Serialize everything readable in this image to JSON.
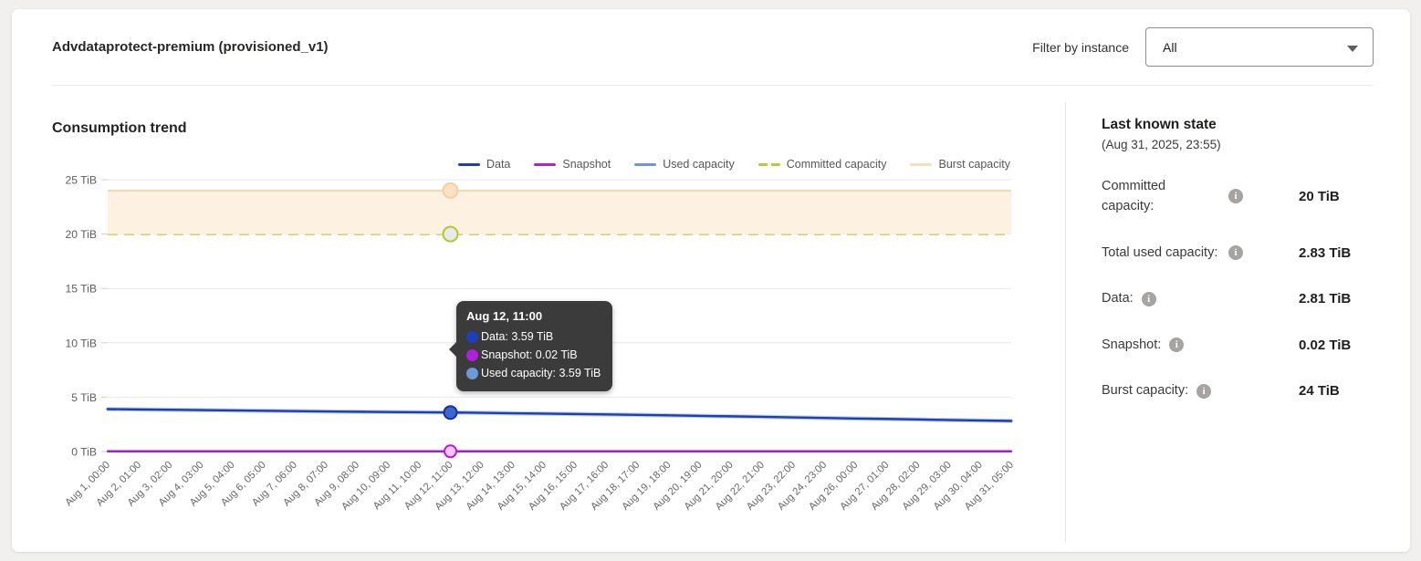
{
  "header": {
    "title": "Advdataprotect-premium (provisioned_v1)",
    "filter_label": "Filter by instance",
    "filter_value": "All"
  },
  "section": {
    "title": "Consumption trend"
  },
  "legend": {
    "items": [
      {
        "label": "Data",
        "color": "#1f3db4",
        "dashed": false
      },
      {
        "label": "Snapshot",
        "color": "#b01fe0",
        "dashed": false
      },
      {
        "label": "Used capacity",
        "color": "#7097d4",
        "dashed": false
      },
      {
        "label": "Committed capacity",
        "color": "#b8cc35",
        "dashed": true
      },
      {
        "label": "Burst capacity",
        "color": "#f6dfba",
        "dashed": false
      }
    ]
  },
  "chart_data": {
    "type": "line",
    "title": "Consumption trend",
    "xlabel": "",
    "ylabel": "TiB",
    "ylim": [
      0,
      25
    ],
    "yticks": [
      0,
      5,
      10,
      15,
      20,
      25
    ],
    "ytick_suffix": " TiB",
    "grid": true,
    "legend_position": "top-right",
    "x": [
      "Aug 1, 00:00",
      "Aug 2, 01:00",
      "Aug 3, 02:00",
      "Aug 4, 03:00",
      "Aug 5, 04:00",
      "Aug 6, 05:00",
      "Aug 7, 06:00",
      "Aug 8, 07:00",
      "Aug 9, 08:00",
      "Aug 10, 09:00",
      "Aug 11, 10:00",
      "Aug 12, 11:00",
      "Aug 13, 12:00",
      "Aug 14, 13:00",
      "Aug 15, 14:00",
      "Aug 16, 15:00",
      "Aug 17, 16:00",
      "Aug 18, 17:00",
      "Aug 19, 18:00",
      "Aug 20, 19:00",
      "Aug 21, 20:00",
      "Aug 22, 21:00",
      "Aug 23, 22:00",
      "Aug 24, 23:00",
      "Aug 26, 00:00",
      "Aug 27, 01:00",
      "Aug 28, 02:00",
      "Aug 29, 03:00",
      "Aug 30, 04:00",
      "Aug 31, 05:00"
    ],
    "series": [
      {
        "name": "Used capacity",
        "color": "#7097d4",
        "values": [
          3.9,
          3.87,
          3.84,
          3.81,
          3.78,
          3.75,
          3.72,
          3.69,
          3.66,
          3.63,
          3.61,
          3.59,
          3.56,
          3.52,
          3.49,
          3.45,
          3.41,
          3.37,
          3.33,
          3.28,
          3.24,
          3.19,
          3.14,
          3.09,
          3.04,
          3.0,
          2.95,
          2.9,
          2.86,
          2.83
        ]
      },
      {
        "name": "Data",
        "color": "#1f3db4",
        "values": [
          3.9,
          3.87,
          3.84,
          3.81,
          3.78,
          3.75,
          3.72,
          3.69,
          3.66,
          3.63,
          3.61,
          3.59,
          3.56,
          3.52,
          3.49,
          3.45,
          3.41,
          3.37,
          3.33,
          3.28,
          3.24,
          3.19,
          3.14,
          3.09,
          3.04,
          3.0,
          2.95,
          2.9,
          2.86,
          2.81
        ]
      },
      {
        "name": "Snapshot",
        "color": "#a816df",
        "values": [
          0.02,
          0.02,
          0.02,
          0.02,
          0.02,
          0.02,
          0.02,
          0.02,
          0.02,
          0.02,
          0.02,
          0.02,
          0.02,
          0.02,
          0.02,
          0.02,
          0.02,
          0.02,
          0.02,
          0.02,
          0.02,
          0.02,
          0.02,
          0.02,
          0.02,
          0.02,
          0.02,
          0.02,
          0.02,
          0.02
        ]
      }
    ],
    "constant_series": [
      {
        "name": "Committed capacity",
        "color": "#b8cc35",
        "value": 20,
        "dashed": true
      },
      {
        "name": "Burst capacity",
        "color": "#f3d9af",
        "value": 24,
        "fill": "#fdf2e2",
        "fill_to": 20
      }
    ],
    "highlight": {
      "x_index": 11,
      "markers": [
        {
          "name": "Burst capacity",
          "value": 24,
          "fill": "#f8e2c1",
          "stroke": "#efd2a4",
          "r": 8
        },
        {
          "name": "Committed capacity",
          "value": 20,
          "fill": "#e9e9e9",
          "stroke": "#b2c832",
          "r": 8
        },
        {
          "name": "Data",
          "value": 3.59,
          "fill": "#3a66d0",
          "stroke": "#172f9d",
          "r": 7
        },
        {
          "name": "Snapshot",
          "value": 0.02,
          "fill": "#f6c7f2",
          "stroke": "#c013e0",
          "r": 6.5
        }
      ]
    }
  },
  "tooltip": {
    "title": "Aug 12, 11:00",
    "rows": [
      {
        "text": "Data: 3.59 TiB",
        "color": "#1d3fba"
      },
      {
        "text": "Snapshot: 0.02 TiB",
        "color": "#b01fe0"
      },
      {
        "text": "Used capacity: 3.59 TiB",
        "color": "#6b9ad6"
      }
    ]
  },
  "panel": {
    "title": "Last known state",
    "subtitle": "(Aug 31, 2025, 23:55)",
    "rows": [
      {
        "label": "Committed capacity:",
        "value": "20 TiB"
      },
      {
        "label": "Total used capacity:",
        "value": "2.83 TiB"
      },
      {
        "label": "Data:",
        "value": "2.81 TiB"
      },
      {
        "label": "Snapshot:",
        "value": "0.02 TiB"
      },
      {
        "label": "Burst capacity:",
        "value": "24 TiB"
      }
    ]
  }
}
